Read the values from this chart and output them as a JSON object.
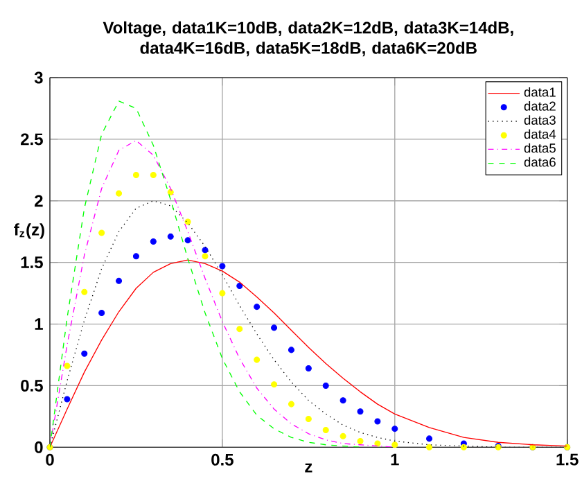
{
  "chart_data": {
    "type": "line",
    "title": "Voltage, data1K=10dB, data2K=12dB, data3K=14dB, data4K=16dB, data5K=18dB, data6K=20dB",
    "xlabel": "z",
    "ylabel": "f$_{z}$(z)",
    "x": [
      0,
      0.05,
      0.1,
      0.15,
      0.2,
      0.25,
      0.3,
      0.35,
      0.4,
      0.45,
      0.5,
      0.55,
      0.6,
      0.65,
      0.7,
      0.75,
      0.8,
      0.85,
      0.9,
      0.95,
      1.0,
      1.1,
      1.2,
      1.3,
      1.4,
      1.5
    ],
    "series": [
      {
        "name": "data1",
        "color": "#ff0000",
        "line_style": "solid",
        "values": [
          0,
          0.31,
          0.61,
          0.87,
          1.1,
          1.29,
          1.42,
          1.49,
          1.52,
          1.49,
          1.43,
          1.34,
          1.22,
          1.09,
          0.95,
          0.81,
          0.68,
          0.56,
          0.45,
          0.35,
          0.27,
          0.16,
          0.08,
          0.04,
          0.02,
          0.01
        ]
      },
      {
        "name": "data2",
        "color": "#0000ff",
        "type": "scatter",
        "values": [
          0,
          0.39,
          0.76,
          1.09,
          1.35,
          1.55,
          1.67,
          1.71,
          1.68,
          1.6,
          1.47,
          1.31,
          1.14,
          0.97,
          0.79,
          0.64,
          0.5,
          0.38,
          0.29,
          0.21,
          0.15,
          0.07,
          0.03,
          0.01,
          0,
          0
        ]
      },
      {
        "name": "data3",
        "color": "#000000",
        "line_style": "dotted",
        "values": [
          0,
          0.54,
          1.03,
          1.45,
          1.75,
          1.94,
          2.0,
          1.96,
          1.82,
          1.63,
          1.4,
          1.15,
          0.92,
          0.71,
          0.53,
          0.38,
          0.27,
          0.18,
          0.12,
          0.08,
          0.05,
          0.02,
          0.01,
          0,
          0,
          0
        ]
      },
      {
        "name": "data4",
        "color": "#ffff00",
        "type": "scatter",
        "values": [
          0,
          0.66,
          1.26,
          1.74,
          2.06,
          2.21,
          2.21,
          2.07,
          1.83,
          1.55,
          1.25,
          0.96,
          0.71,
          0.51,
          0.35,
          0.23,
          0.14,
          0.09,
          0.05,
          0.03,
          0.02,
          0,
          0,
          0,
          0,
          0
        ]
      },
      {
        "name": "data5",
        "color": "#ff00ff",
        "line_style": "dashdot",
        "values": [
          0,
          0.83,
          1.56,
          2.1,
          2.41,
          2.49,
          2.37,
          2.1,
          1.75,
          1.37,
          1.02,
          0.72,
          0.48,
          0.31,
          0.19,
          0.11,
          0.06,
          0.03,
          0.02,
          0.01,
          0,
          null,
          null,
          null,
          null,
          null
        ]
      },
      {
        "name": "data6",
        "color": "#00ff00",
        "line_style": "dashed",
        "values": [
          0,
          1.05,
          1.94,
          2.54,
          2.81,
          2.75,
          2.45,
          2.01,
          1.53,
          1.09,
          0.72,
          0.45,
          0.26,
          0.15,
          0.08,
          0.04,
          0.02,
          0.01,
          0,
          null,
          null,
          null,
          null,
          null,
          null,
          null
        ]
      }
    ],
    "xlim": [
      0,
      1.5
    ],
    "ylim": [
      0,
      3
    ],
    "xticks": [
      0,
      0.5,
      1,
      1.5
    ],
    "yticks": [
      0,
      0.5,
      1,
      1.5,
      2,
      2.5,
      3
    ],
    "grid": true,
    "legend": "top right"
  }
}
